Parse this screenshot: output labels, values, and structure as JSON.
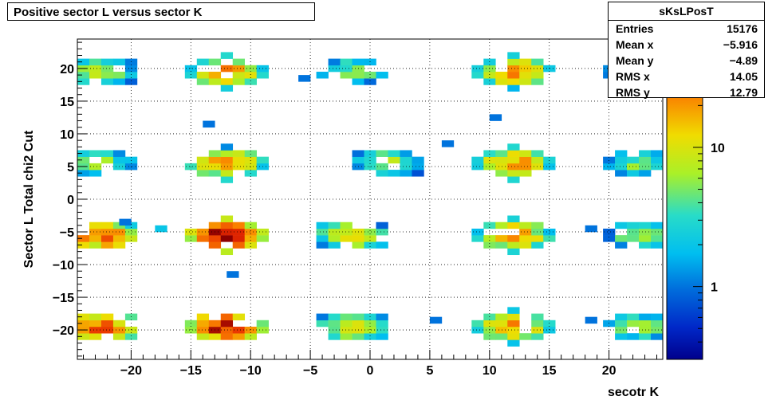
{
  "chart_data": {
    "type": "heatmap",
    "title": "Positive sector L versus sector K",
    "xlabel": "secotr K",
    "ylabel": "Sector L  Total chi2 Cut",
    "xlim": [
      -24.5,
      24.5
    ],
    "ylim": [
      -24.5,
      24.5
    ],
    "x_ticks": [
      -20,
      -15,
      -10,
      -5,
      0,
      5,
      10,
      15,
      20
    ],
    "y_ticks": [
      -20,
      -15,
      -10,
      -5,
      0,
      5,
      10,
      15,
      20
    ],
    "z_scale": "log",
    "zlim": [
      0.3,
      60
    ],
    "z_ticks": [
      1,
      10
    ],
    "grid": true,
    "stats": {
      "name": "sKsLPosT",
      "rows": [
        {
          "label": "Entries",
          "value": "15176"
        },
        {
          "label": "Mean x",
          "value": "−5.916"
        },
        {
          "label": "Mean y",
          "value": "−4.89"
        },
        {
          "label": "RMS x",
          "value": "14.05"
        },
        {
          "label": "RMS y",
          "value": "12.79"
        }
      ]
    },
    "clusters": [
      {
        "cx": -22.5,
        "cy": -19.5,
        "peak": 30
      },
      {
        "cx": -12,
        "cy": -19.5,
        "peak": 50
      },
      {
        "cx": -1.5,
        "cy": -19.5,
        "peak": 12
      },
      {
        "cx": 12,
        "cy": -19.5,
        "peak": 20
      },
      {
        "cx": 22.5,
        "cy": -19.5,
        "peak": 6
      },
      {
        "cx": -22.5,
        "cy": -5.5,
        "peak": 30
      },
      {
        "cx": -12,
        "cy": -5.5,
        "peak": 55
      },
      {
        "cx": -1.5,
        "cy": -5.5,
        "peak": 12
      },
      {
        "cx": 12,
        "cy": -5.5,
        "peak": 20
      },
      {
        "cx": 22.5,
        "cy": -5.5,
        "peak": 6
      },
      {
        "cx": -22.5,
        "cy": 5.5,
        "peak": 6
      },
      {
        "cx": -12,
        "cy": 5.5,
        "peak": 20
      },
      {
        "cx": 1.5,
        "cy": 5.5,
        "peak": 8
      },
      {
        "cx": 12,
        "cy": 5.5,
        "peak": 20
      },
      {
        "cx": 22.5,
        "cy": 5.5,
        "peak": 6
      },
      {
        "cx": -22.5,
        "cy": 19.5,
        "peak": 8
      },
      {
        "cx": -12,
        "cy": 19.5,
        "peak": 20
      },
      {
        "cx": -1.5,
        "cy": 19.5,
        "peak": 6
      },
      {
        "cx": 12,
        "cy": 19.5,
        "peak": 20
      },
      {
        "cx": 22.5,
        "cy": 19.5,
        "peak": 4
      }
    ],
    "isolated_bins": [
      {
        "x": -13.5,
        "y": 11.5,
        "z": 1
      },
      {
        "x": -11.5,
        "y": -11.5,
        "z": 1
      },
      {
        "x": 10.5,
        "y": 12.5,
        "z": 1
      },
      {
        "x": -5.5,
        "y": 18.5,
        "z": 1
      },
      {
        "x": 6.5,
        "y": 8.5,
        "z": 1
      },
      {
        "x": -17.5,
        "y": -4.5,
        "z": 2
      },
      {
        "x": 18.5,
        "y": -4.5,
        "z": 1
      },
      {
        "x": 18.5,
        "y": -18.5,
        "z": 1
      },
      {
        "x": -20.5,
        "y": -3.5,
        "z": 1
      },
      {
        "x": 5.5,
        "y": -18.5,
        "z": 1
      }
    ]
  }
}
